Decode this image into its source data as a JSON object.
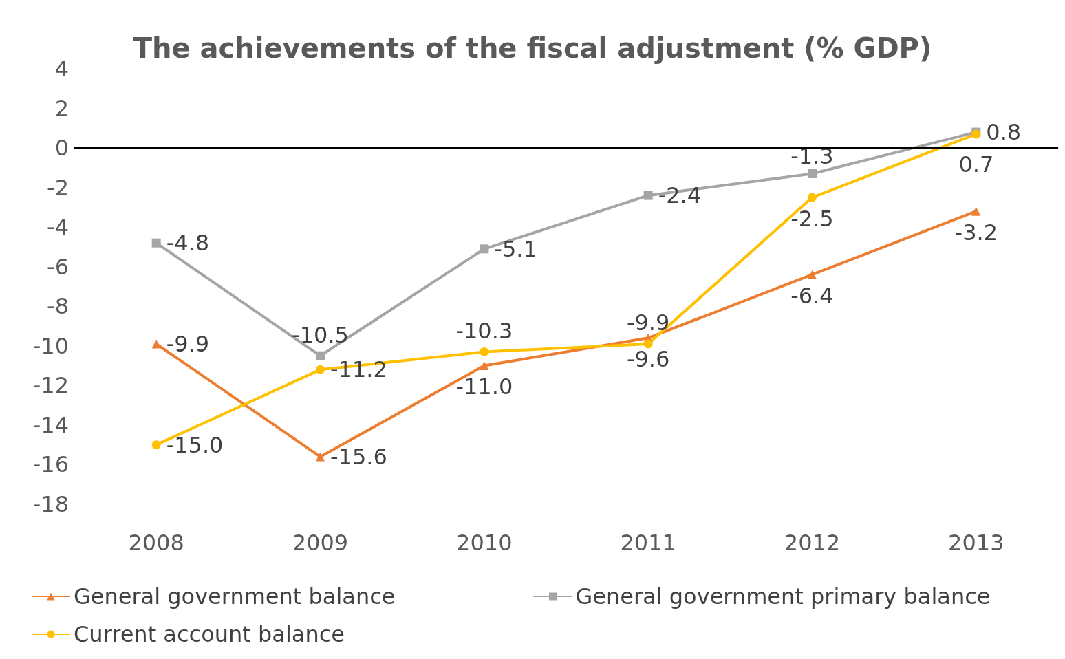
{
  "chart_data": {
    "type": "line",
    "title": "The achievements of the fiscal adjustment (% GDP)",
    "categories": [
      "2008",
      "2009",
      "2010",
      "2011",
      "2012",
      "2013"
    ],
    "series": [
      {
        "name": "General government balance",
        "color": "#ed7d31",
        "marker": "triangle",
        "values": [
          -9.9,
          -15.6,
          -11.0,
          -9.6,
          -6.4,
          -3.2
        ],
        "value_labels": [
          "-9.9",
          "-15.6",
          "-11.0",
          "-9.6",
          "-6.4",
          "-3.2"
        ]
      },
      {
        "name": "General government primary balance",
        "color": "#a5a5a5",
        "marker": "square",
        "values": [
          -4.8,
          -10.5,
          -5.1,
          -2.4,
          -1.3,
          0.8
        ],
        "value_labels": [
          "-4.8",
          "-10.5",
          "-5.1",
          "-2.4",
          "-1.3",
          "0.8"
        ]
      },
      {
        "name": "Current account balance",
        "color": "#ffc000",
        "marker": "circle",
        "values": [
          -15.0,
          -11.2,
          -10.3,
          -9.9,
          -2.5,
          0.7
        ],
        "value_labels": [
          "-15.0",
          "-11.2",
          "-10.3",
          "-9.9",
          "-2.5",
          "0.7"
        ]
      }
    ],
    "ylim": [
      -18,
      4
    ],
    "yticks": [
      -18,
      -16,
      -14,
      -12,
      -10,
      -8,
      -6,
      -4,
      -2,
      0,
      2,
      4
    ],
    "ref_lines": [
      {
        "axis": "y",
        "value": 0,
        "color": "#000000"
      }
    ],
    "grid": false,
    "legend": "bottom"
  }
}
